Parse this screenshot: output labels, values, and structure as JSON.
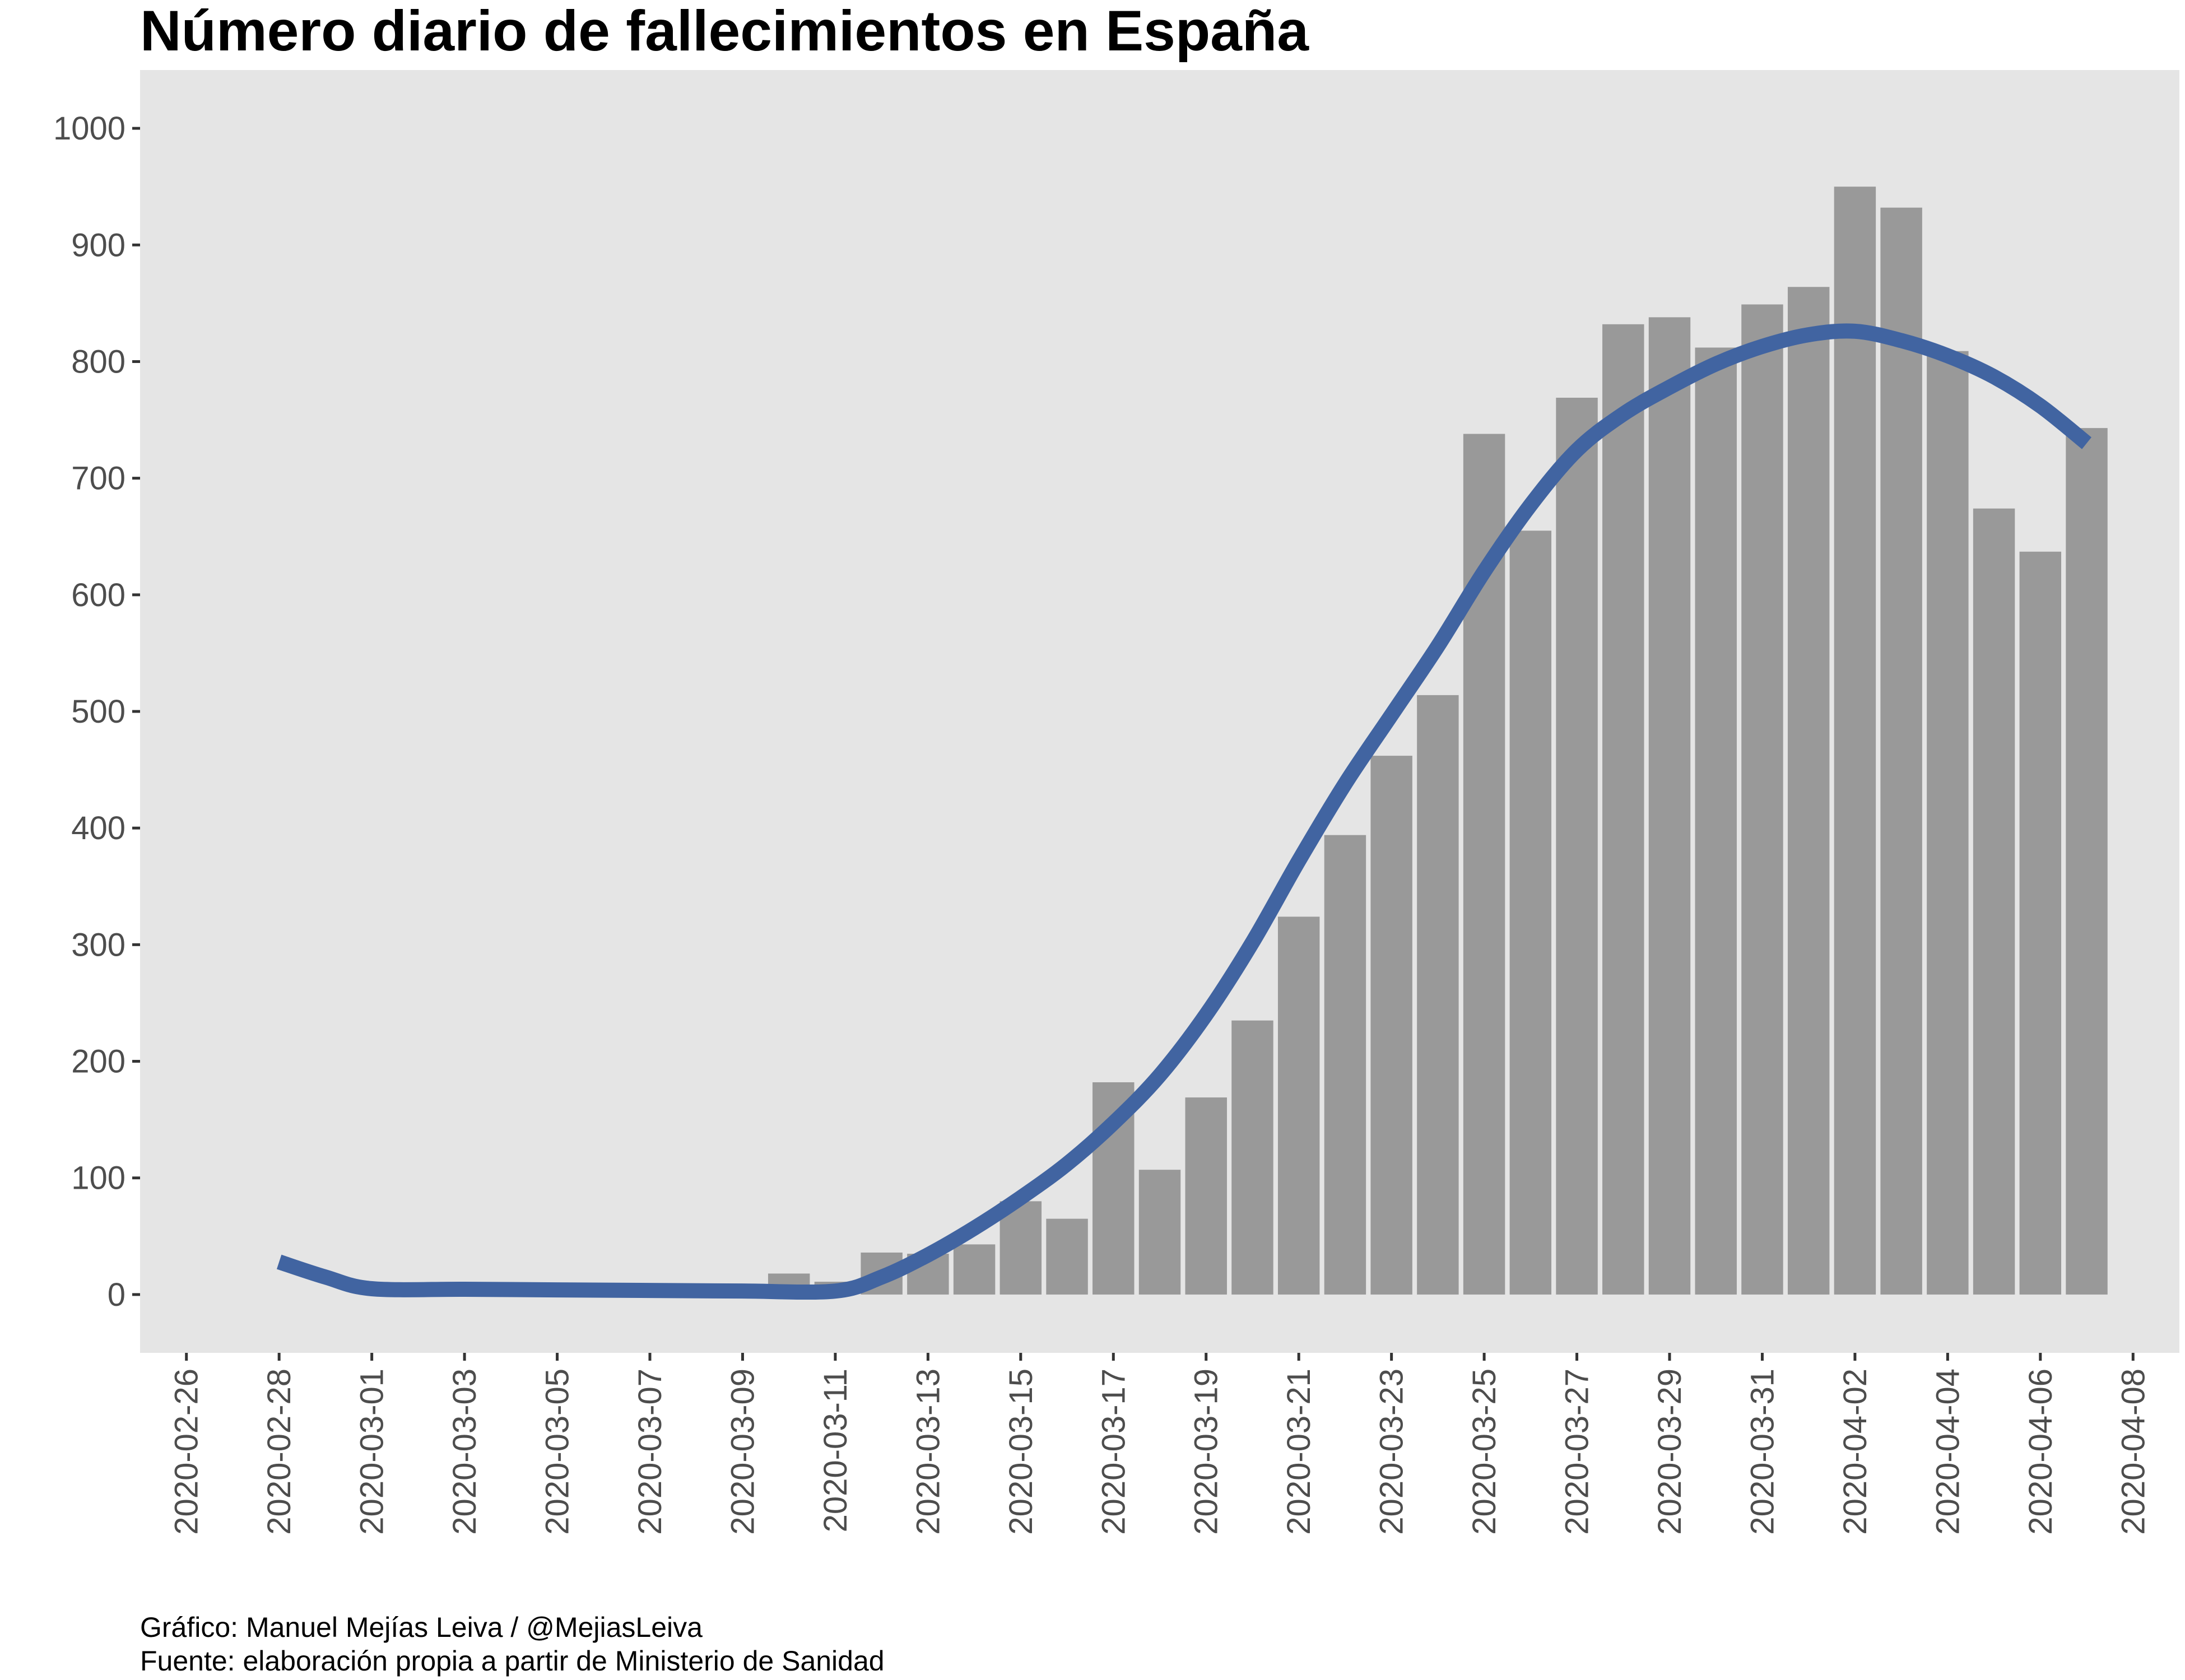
{
  "chart_data": {
    "type": "bar",
    "title": "Número diario de fallecimientos en España",
    "xlabel": "",
    "ylabel": "",
    "ylim": [
      -50,
      1050
    ],
    "y_ticks": [
      0,
      100,
      200,
      300,
      400,
      500,
      600,
      700,
      800,
      900,
      1000
    ],
    "x_range": [
      "2020-02-25",
      "2020-04-09"
    ],
    "x_ticks": [
      "2020-02-26",
      "2020-02-28",
      "2020-03-01",
      "2020-03-03",
      "2020-03-05",
      "2020-03-07",
      "2020-03-09",
      "2020-03-11",
      "2020-03-13",
      "2020-03-15",
      "2020-03-17",
      "2020-03-19",
      "2020-03-21",
      "2020-03-23",
      "2020-03-25",
      "2020-03-27",
      "2020-03-29",
      "2020-03-31",
      "2020-04-02",
      "2020-04-04",
      "2020-04-06",
      "2020-04-08"
    ],
    "bars": [
      {
        "date": "2020-03-10",
        "value": 18
      },
      {
        "date": "2020-03-11",
        "value": 11
      },
      {
        "date": "2020-03-12",
        "value": 36
      },
      {
        "date": "2020-03-13",
        "value": 35
      },
      {
        "date": "2020-03-14",
        "value": 43
      },
      {
        "date": "2020-03-15",
        "value": 80
      },
      {
        "date": "2020-03-16",
        "value": 65
      },
      {
        "date": "2020-03-17",
        "value": 182
      },
      {
        "date": "2020-03-18",
        "value": 107
      },
      {
        "date": "2020-03-19",
        "value": 169
      },
      {
        "date": "2020-03-20",
        "value": 235
      },
      {
        "date": "2020-03-21",
        "value": 324
      },
      {
        "date": "2020-03-22",
        "value": 394
      },
      {
        "date": "2020-03-23",
        "value": 462
      },
      {
        "date": "2020-03-24",
        "value": 514
      },
      {
        "date": "2020-03-25",
        "value": 738
      },
      {
        "date": "2020-03-26",
        "value": 655
      },
      {
        "date": "2020-03-27",
        "value": 769
      },
      {
        "date": "2020-03-28",
        "value": 832
      },
      {
        "date": "2020-03-29",
        "value": 838
      },
      {
        "date": "2020-03-30",
        "value": 812
      },
      {
        "date": "2020-03-31",
        "value": 849
      },
      {
        "date": "2020-04-01",
        "value": 864
      },
      {
        "date": "2020-04-02",
        "value": 950
      },
      {
        "date": "2020-04-03",
        "value": 932
      },
      {
        "date": "2020-04-04",
        "value": 809
      },
      {
        "date": "2020-04-05",
        "value": 674
      },
      {
        "date": "2020-04-06",
        "value": 637
      },
      {
        "date": "2020-04-07",
        "value": 743
      }
    ],
    "trend": [
      {
        "date": "2020-02-28",
        "value": 28
      },
      {
        "date": "2020-02-29",
        "value": 15
      },
      {
        "date": "2020-03-01",
        "value": 5
      },
      {
        "date": "2020-03-03",
        "value": 4.5
      },
      {
        "date": "2020-03-05",
        "value": 4
      },
      {
        "date": "2020-03-07",
        "value": 3.5
      },
      {
        "date": "2020-03-09",
        "value": 3
      },
      {
        "date": "2020-03-11",
        "value": 3
      },
      {
        "date": "2020-03-12",
        "value": 15
      },
      {
        "date": "2020-03-13",
        "value": 34
      },
      {
        "date": "2020-03-14",
        "value": 57
      },
      {
        "date": "2020-03-15",
        "value": 83
      },
      {
        "date": "2020-03-16",
        "value": 112
      },
      {
        "date": "2020-03-17",
        "value": 147
      },
      {
        "date": "2020-03-18",
        "value": 188
      },
      {
        "date": "2020-03-19",
        "value": 240
      },
      {
        "date": "2020-03-20",
        "value": 302
      },
      {
        "date": "2020-03-21",
        "value": 372
      },
      {
        "date": "2020-03-22",
        "value": 438
      },
      {
        "date": "2020-03-23",
        "value": 497
      },
      {
        "date": "2020-03-24",
        "value": 556
      },
      {
        "date": "2020-03-25",
        "value": 620
      },
      {
        "date": "2020-03-26",
        "value": 677
      },
      {
        "date": "2020-03-27",
        "value": 724
      },
      {
        "date": "2020-03-28",
        "value": 755
      },
      {
        "date": "2020-03-29",
        "value": 778
      },
      {
        "date": "2020-03-30",
        "value": 798
      },
      {
        "date": "2020-03-31",
        "value": 813
      },
      {
        "date": "2020-04-01",
        "value": 823
      },
      {
        "date": "2020-04-02",
        "value": 826
      },
      {
        "date": "2020-04-03",
        "value": 818
      },
      {
        "date": "2020-04-04",
        "value": 805
      },
      {
        "date": "2020-04-05",
        "value": 787
      },
      {
        "date": "2020-04-06",
        "value": 762
      },
      {
        "date": "2020-04-07",
        "value": 730
      }
    ],
    "bar_color": "#999999",
    "trend_color": "#4164a1",
    "panel_background": "#e5e5e5",
    "grid": false,
    "legend": "none"
  },
  "caption": {
    "line1": "Gráfico: Manuel Mejías Leiva / @MejiasLeiva",
    "line2": "Fuente: elaboración propia a partir de Ministerio de Sanidad"
  }
}
